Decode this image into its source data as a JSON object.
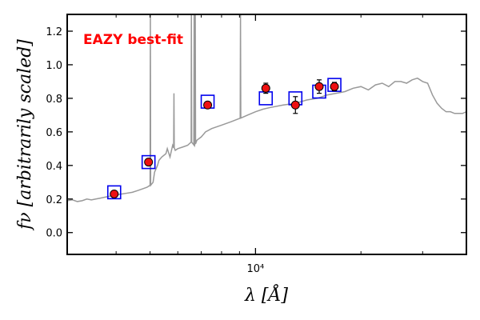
{
  "chart_data": {
    "type": "scatter",
    "title": "",
    "annotation": "EAZY best-fit",
    "annotation_color": "#ff0000",
    "xlabel": "λ [Å]",
    "ylabel": "fν [arbitrarily scaled]",
    "x_scale": "log",
    "xlim": [
      2900,
      40000
    ],
    "ylim": [
      -0.13,
      1.3
    ],
    "x_tick_label_major": "10⁴",
    "y_ticks": [
      0.0,
      0.2,
      0.4,
      0.6,
      0.8,
      1.0,
      1.2
    ],
    "y_tick_labels": [
      "0.0",
      "0.2",
      "0.4",
      "0.6",
      "0.8",
      "1.0",
      "1.2"
    ],
    "colors": {
      "template": "#999999",
      "model_box": "#0000ee",
      "observed_fill": "#ee1111",
      "observed_edge": "#000000"
    },
    "template_spectrum": [
      [
        2900,
        0.19
      ],
      [
        3000,
        0.195
      ],
      [
        3100,
        0.185
      ],
      [
        3200,
        0.19
      ],
      [
        3300,
        0.2
      ],
      [
        3400,
        0.195
      ],
      [
        3500,
        0.2
      ],
      [
        3600,
        0.205
      ],
      [
        3700,
        0.21
      ],
      [
        3800,
        0.215
      ],
      [
        3900,
        0.22
      ],
      [
        4000,
        0.225
      ],
      [
        4150,
        0.23
      ],
      [
        4300,
        0.235
      ],
      [
        4450,
        0.24
      ],
      [
        4600,
        0.25
      ],
      [
        4750,
        0.26
      ],
      [
        4900,
        0.27
      ],
      [
        5000,
        0.28
      ],
      [
        5100,
        0.3
      ],
      [
        5150,
        0.36
      ],
      [
        5250,
        0.4
      ],
      [
        5300,
        0.43
      ],
      [
        5400,
        0.45
      ],
      [
        5550,
        0.47
      ],
      [
        5600,
        0.5
      ],
      [
        5700,
        0.45
      ],
      [
        5800,
        0.52
      ],
      [
        5900,
        0.49
      ],
      [
        6000,
        0.5
      ],
      [
        6200,
        0.51
      ],
      [
        6400,
        0.52
      ],
      [
        6550,
        0.54
      ],
      [
        6700,
        0.52
      ],
      [
        6800,
        0.55
      ],
      [
        7000,
        0.57
      ],
      [
        7200,
        0.6
      ],
      [
        7500,
        0.62
      ],
      [
        8000,
        0.64
      ],
      [
        8500,
        0.66
      ],
      [
        9000,
        0.68
      ],
      [
        9500,
        0.7
      ],
      [
        10000,
        0.72
      ],
      [
        10500,
        0.735
      ],
      [
        11000,
        0.745
      ],
      [
        12000,
        0.76
      ],
      [
        13000,
        0.77
      ],
      [
        14000,
        0.79
      ],
      [
        15000,
        0.8
      ],
      [
        16000,
        0.82
      ],
      [
        17000,
        0.83
      ],
      [
        18000,
        0.84
      ],
      [
        19000,
        0.86
      ],
      [
        20000,
        0.87
      ],
      [
        21000,
        0.85
      ],
      [
        22000,
        0.88
      ],
      [
        23000,
        0.89
      ],
      [
        24000,
        0.87
      ],
      [
        25000,
        0.9
      ],
      [
        26000,
        0.9
      ],
      [
        27000,
        0.89
      ],
      [
        28000,
        0.91
      ],
      [
        29000,
        0.92
      ],
      [
        30000,
        0.9
      ],
      [
        31000,
        0.89
      ],
      [
        32000,
        0.82
      ],
      [
        33000,
        0.77
      ],
      [
        34000,
        0.74
      ],
      [
        35000,
        0.72
      ],
      [
        36000,
        0.72
      ],
      [
        37000,
        0.71
      ],
      [
        38000,
        0.71
      ],
      [
        39000,
        0.71
      ],
      [
        40000,
        0.72
      ]
    ],
    "emission_lines": [
      {
        "x": 5010,
        "peak": 1.3
      },
      {
        "x": 5850,
        "peak": 0.83
      },
      {
        "x": 6560,
        "peak": 1.3
      },
      {
        "x": 6680,
        "peak": 1.3
      },
      {
        "x": 6730,
        "peak": 1.3
      },
      {
        "x": 9060,
        "peak": 1.3
      }
    ],
    "model_points": [
      {
        "x": 3950,
        "y": 0.24
      },
      {
        "x": 4950,
        "y": 0.42
      },
      {
        "x": 7300,
        "y": 0.78
      },
      {
        "x": 10700,
        "y": 0.8
      },
      {
        "x": 13000,
        "y": 0.8
      },
      {
        "x": 15200,
        "y": 0.84
      },
      {
        "x": 16800,
        "y": 0.88
      }
    ],
    "observed_points": [
      {
        "x": 3950,
        "y": 0.23,
        "err": 0.0
      },
      {
        "x": 4950,
        "y": 0.42,
        "err": 0.0
      },
      {
        "x": 7300,
        "y": 0.76,
        "err": 0.0
      },
      {
        "x": 10700,
        "y": 0.86,
        "err": 0.03
      },
      {
        "x": 13000,
        "y": 0.76,
        "err": 0.05
      },
      {
        "x": 15200,
        "y": 0.87,
        "err": 0.04
      },
      {
        "x": 16800,
        "y": 0.87,
        "err": 0.025
      }
    ]
  }
}
